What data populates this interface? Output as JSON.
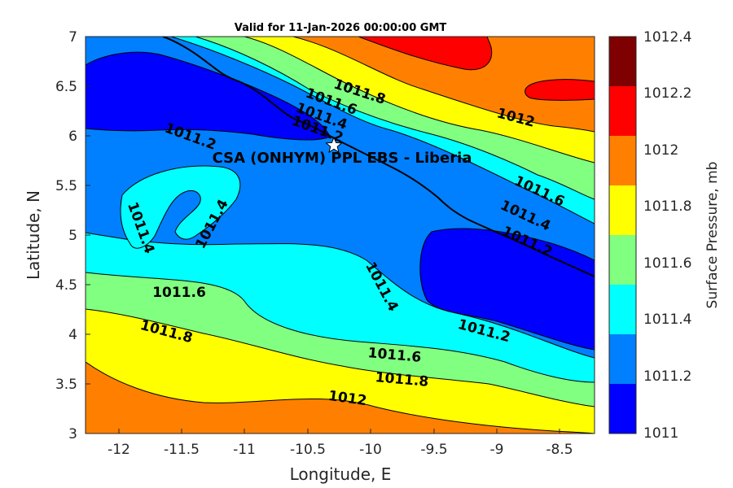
{
  "title": "Valid for 11-Jan-2026 00:00:00 GMT",
  "xlabel": "Longitude, E",
  "ylabel": "Latitude, N",
  "x_ticks": [
    "-12",
    "-11.5",
    "-11",
    "-10.5",
    "-10",
    "-9.5",
    "-9",
    "-8.5"
  ],
  "y_ticks": [
    "7",
    "6.5",
    "6",
    "5.5",
    "5",
    "4.5",
    "4",
    "3.5",
    "3"
  ],
  "colorbar": {
    "label": "Surface Pressure, mb",
    "ticks": [
      "1012.4",
      "1012.2",
      "1012",
      "1011.8",
      "1011.6",
      "1011.4",
      "1011.2",
      "1011"
    ],
    "colors": [
      "#7f0000",
      "#ff0000",
      "#ff8000",
      "#ffff00",
      "#80ff80",
      "#00ffff",
      "#0080ff",
      "#0000ff"
    ]
  },
  "site": {
    "label": "CSA (ONHYM) PPL EBS  - Liberia",
    "symbol": "star-icon"
  },
  "contour_labels": [
    "1011.8",
    "1011.6",
    "1011.4",
    "1011.2",
    "1012",
    "1011.2",
    "1011.4",
    "1011.4",
    "1011.6",
    "1011.4",
    "1011.2",
    "1011.4",
    "1011.6",
    "1011.8",
    "1011.2",
    "1011.6",
    "1011.8",
    "1012"
  ]
}
